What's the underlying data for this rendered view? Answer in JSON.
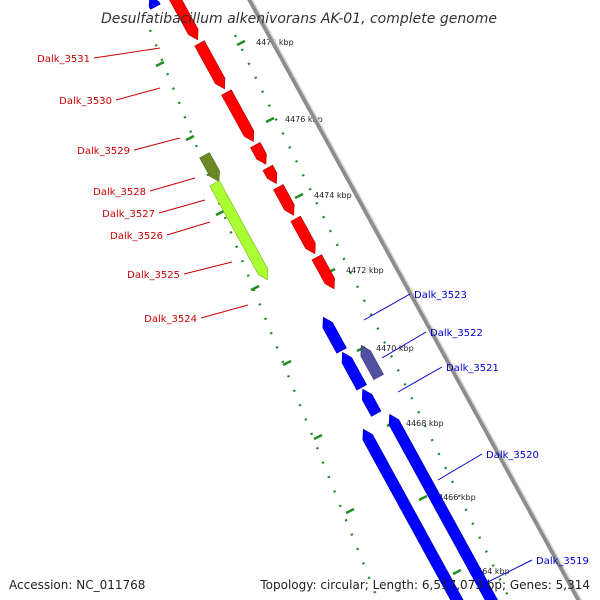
{
  "title": "Desulfatibacillum alkenivorans AK-01, complete genome",
  "footer": {
    "accession": "Accession: NC_011768",
    "topology": "Topology: circular; Length: 6,517,073 bp; Genes: 5,314"
  },
  "colors": {
    "forward_cds": "#ff0000",
    "forward_highlight": "#aaff33",
    "forward_highlight_dark": "#6b8a26",
    "reverse_cds": "#0000ff",
    "reverse_highlight": "#5050a0",
    "backbone": "#8c8c8c",
    "ticks": "#228b22",
    "forward_label": "#cc0000",
    "reverse_label": "#0000cc"
  },
  "scale_ticks": [
    "4478 kbp",
    "4476 kbp",
    "4474 kbp",
    "4472 kbp",
    "4470 kbp",
    "4468 kbp",
    "4466 kbp",
    "4464 kbp"
  ],
  "genes": [
    {
      "name": "Dalk_3531",
      "strand": "forward",
      "highlight": false
    },
    {
      "name": "Dalk_3530",
      "strand": "forward",
      "highlight": false
    },
    {
      "name": "Dalk_3529",
      "strand": "forward",
      "highlight": false
    },
    {
      "name": "Dalk_3528",
      "strand": "forward",
      "highlight": false
    },
    {
      "name": "Dalk_3527",
      "strand": "forward",
      "highlight": false
    },
    {
      "name": "Dalk_3526",
      "strand": "forward",
      "highlight": false
    },
    {
      "name": "Dalk_3525",
      "strand": "forward",
      "highlight": true
    },
    {
      "name": "Dalk_3524",
      "strand": "forward",
      "highlight": false
    },
    {
      "name": "Dalk_3523",
      "strand": "reverse",
      "highlight": false
    },
    {
      "name": "Dalk_3522",
      "strand": "reverse",
      "highlight": true
    },
    {
      "name": "Dalk_3521",
      "strand": "reverse",
      "highlight": false
    },
    {
      "name": "Dalk_3520",
      "strand": "reverse",
      "highlight": false
    },
    {
      "name": "Dalk_3519",
      "strand": "reverse",
      "highlight": false
    }
  ]
}
